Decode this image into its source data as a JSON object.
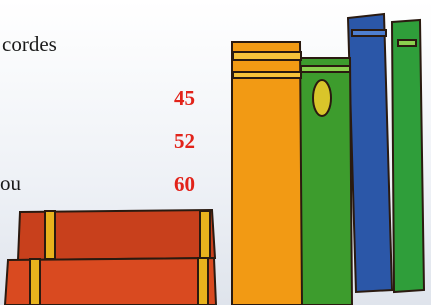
{
  "heading": "cordes",
  "fragment": "ou",
  "numbers": [
    45,
    52,
    60
  ]
}
